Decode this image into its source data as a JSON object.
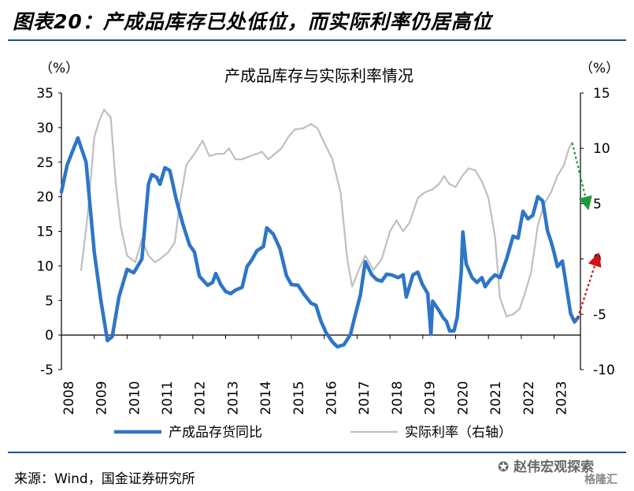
{
  "figure_title": "图表20：产成品库存已处低位，而实际利率仍居高位",
  "source": "来源：Wind，国金证券研究所",
  "watermark": "赵伟宏观探索",
  "watermark2": "格隆汇",
  "colors": {
    "inventory": "#2e75c8",
    "real_rate": "#bfbfbf",
    "rule": "#1f4e9c",
    "arrow_green": "#1f9a3a",
    "arrow_red": "#d01414"
  },
  "chart_data": {
    "type": "line",
    "title": "产成品库存与实际利率情况",
    "left_unit": "（%）",
    "right_unit": "（%）",
    "left_ylim": [
      -5,
      35
    ],
    "left_ticks": [
      "35",
      "30",
      "25",
      "20",
      "15",
      "10",
      "5",
      "0",
      "-5"
    ],
    "right_ylim": [
      -10,
      15
    ],
    "right_ticks": [
      "15",
      "10",
      "5",
      "0",
      "-5",
      "-10"
    ],
    "x_ticks": [
      "2008",
      "2009",
      "2010",
      "2011",
      "2012",
      "2013",
      "2014",
      "2015",
      "2016",
      "2017",
      "2018",
      "2019",
      "2020",
      "2021",
      "2022",
      "2023"
    ],
    "grid": false,
    "legend_position": "bottom",
    "series": [
      {
        "name": "产成品存货同比",
        "axis": "left",
        "points": [
          [
            2008.0,
            20.7
          ],
          [
            2008.17,
            24.5
          ],
          [
            2008.33,
            26.5
          ],
          [
            2008.5,
            28.5
          ],
          [
            2008.75,
            25.0
          ],
          [
            2009.0,
            12.0
          ],
          [
            2009.2,
            5.0
          ],
          [
            2009.4,
            -0.8
          ],
          [
            2009.55,
            -0.2
          ],
          [
            2009.75,
            5.5
          ],
          [
            2010.0,
            9.5
          ],
          [
            2010.2,
            9.0
          ],
          [
            2010.45,
            11.0
          ],
          [
            2010.65,
            21.8
          ],
          [
            2010.75,
            23.2
          ],
          [
            2010.9,
            22.8
          ],
          [
            2011.0,
            21.8
          ],
          [
            2011.15,
            24.2
          ],
          [
            2011.3,
            23.8
          ],
          [
            2011.5,
            19.5
          ],
          [
            2011.7,
            16.0
          ],
          [
            2011.9,
            13.0
          ],
          [
            2012.05,
            12.0
          ],
          [
            2012.2,
            8.5
          ],
          [
            2012.45,
            7.2
          ],
          [
            2012.6,
            7.6
          ],
          [
            2012.7,
            8.9
          ],
          [
            2012.85,
            7.3
          ],
          [
            2013.0,
            6.3
          ],
          [
            2013.15,
            6.0
          ],
          [
            2013.3,
            6.5
          ],
          [
            2013.5,
            6.9
          ],
          [
            2013.65,
            9.9
          ],
          [
            2013.8,
            10.9
          ],
          [
            2013.95,
            12.2
          ],
          [
            2014.15,
            12.8
          ],
          [
            2014.25,
            15.5
          ],
          [
            2014.45,
            14.6
          ],
          [
            2014.65,
            12.5
          ],
          [
            2014.85,
            8.6
          ],
          [
            2015.0,
            7.3
          ],
          [
            2015.2,
            7.2
          ],
          [
            2015.4,
            5.8
          ],
          [
            2015.6,
            4.6
          ],
          [
            2015.75,
            4.3
          ],
          [
            2015.9,
            2.0
          ],
          [
            2016.05,
            0.4
          ],
          [
            2016.25,
            -1.0
          ],
          [
            2016.4,
            -1.7
          ],
          [
            2016.6,
            -1.4
          ],
          [
            2016.8,
            0.1
          ],
          [
            2016.95,
            3.0
          ],
          [
            2017.1,
            5.8
          ],
          [
            2017.25,
            10.6
          ],
          [
            2017.45,
            8.7
          ],
          [
            2017.6,
            8.0
          ],
          [
            2017.75,
            7.8
          ],
          [
            2017.9,
            8.8
          ],
          [
            2018.05,
            8.7
          ],
          [
            2018.25,
            8.3
          ],
          [
            2018.4,
            8.7
          ],
          [
            2018.5,
            5.5
          ],
          [
            2018.7,
            8.7
          ],
          [
            2018.85,
            9.1
          ],
          [
            2018.98,
            7.4
          ],
          [
            2019.15,
            6.0
          ],
          [
            2019.25,
            0.1
          ],
          [
            2019.3,
            4.9
          ],
          [
            2019.5,
            3.5
          ],
          [
            2019.62,
            2.5
          ],
          [
            2019.72,
            2.0
          ],
          [
            2019.82,
            0.6
          ],
          [
            2019.95,
            0.6
          ],
          [
            2020.05,
            2.6
          ],
          [
            2020.17,
            9.0
          ],
          [
            2020.22,
            14.9
          ],
          [
            2020.32,
            10.3
          ],
          [
            2020.5,
            8.3
          ],
          [
            2020.65,
            7.6
          ],
          [
            2020.8,
            8.3
          ],
          [
            2020.9,
            7.0
          ],
          [
            2021.05,
            8.0
          ],
          [
            2021.2,
            8.7
          ],
          [
            2021.35,
            8.3
          ],
          [
            2021.55,
            11.0
          ],
          [
            2021.75,
            14.3
          ],
          [
            2021.9,
            14.0
          ],
          [
            2022.05,
            17.9
          ],
          [
            2022.2,
            16.8
          ],
          [
            2022.35,
            17.3
          ],
          [
            2022.5,
            20.0
          ],
          [
            2022.65,
            19.4
          ],
          [
            2022.8,
            15.0
          ],
          [
            2022.9,
            13.6
          ],
          [
            2023.0,
            11.9
          ],
          [
            2023.1,
            9.9
          ],
          [
            2023.25,
            10.7
          ],
          [
            2023.38,
            6.8
          ],
          [
            2023.5,
            3.1
          ],
          [
            2023.62,
            1.9
          ],
          [
            2023.72,
            2.5
          ]
        ]
      },
      {
        "name": "实际利率（右轴）",
        "axis": "right",
        "points": [
          [
            2008.6,
            -1.0
          ],
          [
            2008.8,
            4.0
          ],
          [
            2009.0,
            11.0
          ],
          [
            2009.15,
            12.5
          ],
          [
            2009.3,
            13.5
          ],
          [
            2009.5,
            12.8
          ],
          [
            2009.65,
            7.0
          ],
          [
            2009.8,
            3.0
          ],
          [
            2010.0,
            0.3
          ],
          [
            2010.25,
            -0.3
          ],
          [
            2010.45,
            1.8
          ],
          [
            2010.65,
            0.3
          ],
          [
            2010.85,
            -0.3
          ],
          [
            2011.0,
            0.0
          ],
          [
            2011.25,
            0.6
          ],
          [
            2011.45,
            1.5
          ],
          [
            2011.6,
            5.0
          ],
          [
            2011.8,
            8.5
          ],
          [
            2012.05,
            9.5
          ],
          [
            2012.3,
            10.7
          ],
          [
            2012.5,
            9.3
          ],
          [
            2012.75,
            9.5
          ],
          [
            2012.95,
            9.5
          ],
          [
            2013.1,
            10.0
          ],
          [
            2013.3,
            9.0
          ],
          [
            2013.5,
            9.0
          ],
          [
            2013.75,
            9.3
          ],
          [
            2013.95,
            9.5
          ],
          [
            2014.1,
            9.7
          ],
          [
            2014.3,
            9.0
          ],
          [
            2014.5,
            9.5
          ],
          [
            2014.7,
            10.0
          ],
          [
            2014.9,
            11.0
          ],
          [
            2015.1,
            11.7
          ],
          [
            2015.35,
            11.8
          ],
          [
            2015.6,
            12.2
          ],
          [
            2015.8,
            11.8
          ],
          [
            2016.0,
            10.5
          ],
          [
            2016.25,
            9.0
          ],
          [
            2016.5,
            6.0
          ],
          [
            2016.7,
            0.0
          ],
          [
            2016.85,
            -2.5
          ],
          [
            2017.05,
            -1.0
          ],
          [
            2017.25,
            0.3
          ],
          [
            2017.5,
            -1.0
          ],
          [
            2017.75,
            0.0
          ],
          [
            2018.0,
            2.5
          ],
          [
            2018.2,
            3.5
          ],
          [
            2018.4,
            2.5
          ],
          [
            2018.6,
            3.3
          ],
          [
            2018.85,
            5.5
          ],
          [
            2019.05,
            6.0
          ],
          [
            2019.3,
            6.3
          ],
          [
            2019.5,
            6.8
          ],
          [
            2019.65,
            7.5
          ],
          [
            2019.8,
            6.8
          ],
          [
            2020.0,
            6.5
          ],
          [
            2020.2,
            7.5
          ],
          [
            2020.4,
            8.2
          ],
          [
            2020.6,
            8.0
          ],
          [
            2020.8,
            7.0
          ],
          [
            2021.0,
            5.5
          ],
          [
            2021.2,
            2.0
          ],
          [
            2021.35,
            -3.5
          ],
          [
            2021.55,
            -5.2
          ],
          [
            2021.75,
            -5.0
          ],
          [
            2021.95,
            -4.5
          ],
          [
            2022.1,
            -3.2
          ],
          [
            2022.3,
            -1.2
          ],
          [
            2022.5,
            3.0
          ],
          [
            2022.7,
            5.0
          ],
          [
            2022.9,
            6.0
          ],
          [
            2023.1,
            7.5
          ],
          [
            2023.3,
            8.5
          ],
          [
            2023.45,
            10.0
          ],
          [
            2023.55,
            10.5
          ]
        ]
      }
    ],
    "annotations": [
      {
        "kind": "arrow",
        "color": "green",
        "from": [
          2023.55,
          10.5
        ],
        "to": [
          2024.0,
          5.0
        ],
        "axis": "right"
      },
      {
        "kind": "arrow",
        "color": "red",
        "from": [
          2023.72,
          2.5
        ],
        "to": [
          2024.3,
          11.0
        ],
        "axis": "left"
      }
    ]
  }
}
